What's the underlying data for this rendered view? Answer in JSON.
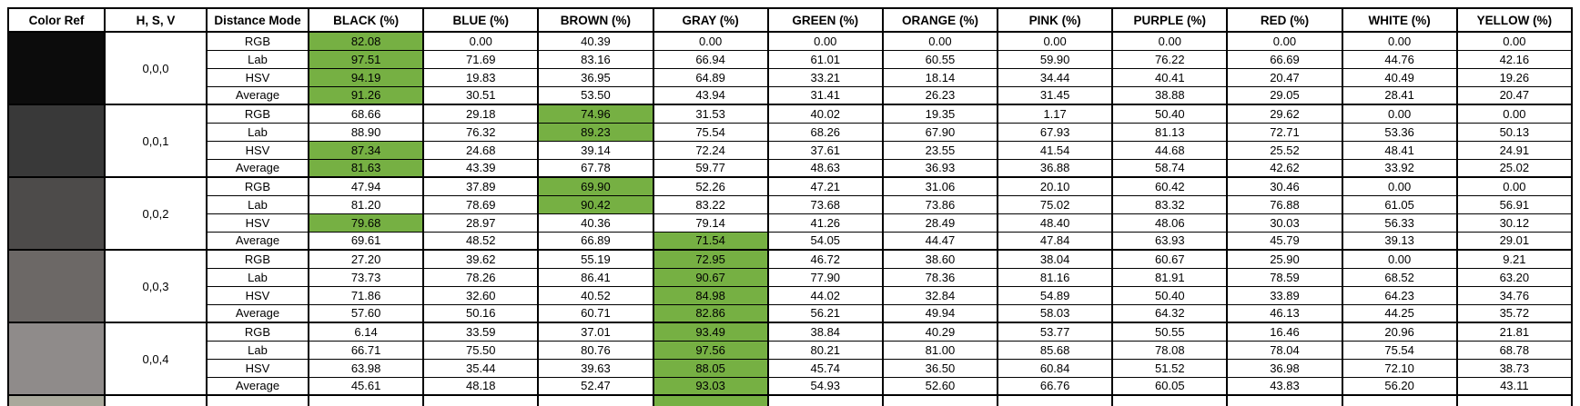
{
  "table": {
    "highlight_color": "#76b043",
    "headers": [
      "Color Ref",
      "H, S, V",
      "Distance Mode",
      "BLACK (%)",
      "BLUE  (%)",
      "BROWN (%)",
      "GRAY (%)",
      "GREEN (%)",
      "ORANGE (%)",
      "PINK (%)",
      "PURPLE (%)",
      "RED (%)",
      "WHITE (%)",
      "YELLOW (%)"
    ],
    "groups": [
      {
        "hsv": "0,0,0",
        "swatch": "#0c0c0c",
        "rows": [
          {
            "mode": "RGB",
            "highlight": 0,
            "values": [
              "82.08",
              "0.00",
              "40.39",
              "0.00",
              "0.00",
              "0.00",
              "0.00",
              "0.00",
              "0.00",
              "0.00",
              "0.00"
            ]
          },
          {
            "mode": "Lab",
            "highlight": 0,
            "values": [
              "97.51",
              "71.69",
              "83.16",
              "66.94",
              "61.01",
              "60.55",
              "59.90",
              "76.22",
              "66.69",
              "44.76",
              "42.16"
            ]
          },
          {
            "mode": "HSV",
            "highlight": 0,
            "values": [
              "94.19",
              "19.83",
              "36.95",
              "64.89",
              "33.21",
              "18.14",
              "34.44",
              "40.41",
              "20.47",
              "40.49",
              "19.26"
            ]
          },
          {
            "mode": "Average",
            "highlight": 0,
            "values": [
              "91.26",
              "30.51",
              "53.50",
              "43.94",
              "31.41",
              "26.23",
              "31.45",
              "38.88",
              "29.05",
              "28.41",
              "20.47"
            ]
          }
        ]
      },
      {
        "hsv": "0,0,1",
        "swatch": "#393939",
        "rows": [
          {
            "mode": "RGB",
            "highlight": 2,
            "values": [
              "68.66",
              "29.18",
              "74.96",
              "31.53",
              "40.02",
              "19.35",
              "1.17",
              "50.40",
              "29.62",
              "0.00",
              "0.00"
            ]
          },
          {
            "mode": "Lab",
            "highlight": 2,
            "values": [
              "88.90",
              "76.32",
              "89.23",
              "75.54",
              "68.26",
              "67.90",
              "67.93",
              "81.13",
              "72.71",
              "53.36",
              "50.13"
            ]
          },
          {
            "mode": "HSV",
            "highlight": 0,
            "values": [
              "87.34",
              "24.68",
              "39.14",
              "72.24",
              "37.61",
              "23.55",
              "41.54",
              "44.68",
              "25.52",
              "48.41",
              "24.91"
            ]
          },
          {
            "mode": "Average",
            "highlight": 0,
            "values": [
              "81.63",
              "43.39",
              "67.78",
              "59.77",
              "48.63",
              "36.93",
              "36.88",
              "58.74",
              "42.62",
              "33.92",
              "25.02"
            ]
          }
        ]
      },
      {
        "hsv": "0,0,2",
        "swatch": "#4d4b4a",
        "rows": [
          {
            "mode": "RGB",
            "highlight": 2,
            "values": [
              "47.94",
              "37.89",
              "69.90",
              "52.26",
              "47.21",
              "31.06",
              "20.10",
              "60.42",
              "30.46",
              "0.00",
              "0.00"
            ]
          },
          {
            "mode": "Lab",
            "highlight": 2,
            "values": [
              "81.20",
              "78.69",
              "90.42",
              "83.22",
              "73.68",
              "73.86",
              "75.02",
              "83.32",
              "76.88",
              "61.05",
              "56.91"
            ]
          },
          {
            "mode": "HSV",
            "highlight": 0,
            "values": [
              "79.68",
              "28.97",
              "40.36",
              "79.14",
              "41.26",
              "28.49",
              "48.40",
              "48.06",
              "30.03",
              "56.33",
              "30.12"
            ]
          },
          {
            "mode": "Average",
            "highlight": 3,
            "values": [
              "69.61",
              "48.52",
              "66.89",
              "71.54",
              "54.05",
              "44.47",
              "47.84",
              "63.93",
              "45.79",
              "39.13",
              "29.01"
            ]
          }
        ]
      },
      {
        "hsv": "0,0,3",
        "swatch": "#6c6866",
        "rows": [
          {
            "mode": "RGB",
            "highlight": 3,
            "values": [
              "27.20",
              "39.62",
              "55.19",
              "72.95",
              "46.72",
              "38.60",
              "38.04",
              "60.67",
              "25.90",
              "0.00",
              "9.21"
            ]
          },
          {
            "mode": "Lab",
            "highlight": 3,
            "values": [
              "73.73",
              "78.26",
              "86.41",
              "90.67",
              "77.90",
              "78.36",
              "81.16",
              "81.91",
              "78.59",
              "68.52",
              "63.20"
            ]
          },
          {
            "mode": "HSV",
            "highlight": 3,
            "values": [
              "71.86",
              "32.60",
              "40.52",
              "84.98",
              "44.02",
              "32.84",
              "54.89",
              "50.40",
              "33.89",
              "64.23",
              "34.76"
            ]
          },
          {
            "mode": "Average",
            "highlight": 3,
            "values": [
              "57.60",
              "50.16",
              "60.71",
              "82.86",
              "56.21",
              "49.94",
              "58.03",
              "64.32",
              "46.13",
              "44.25",
              "35.72"
            ]
          }
        ]
      },
      {
        "hsv": "0,0,4",
        "swatch": "#8f8b8a",
        "rows": [
          {
            "mode": "RGB",
            "highlight": 3,
            "values": [
              "6.14",
              "33.59",
              "37.01",
              "93.49",
              "38.84",
              "40.29",
              "53.77",
              "50.55",
              "16.46",
              "20.96",
              "21.81"
            ]
          },
          {
            "mode": "Lab",
            "highlight": 3,
            "values": [
              "66.71",
              "75.50",
              "80.76",
              "97.56",
              "80.21",
              "81.00",
              "85.68",
              "78.08",
              "78.04",
              "75.54",
              "68.78"
            ]
          },
          {
            "mode": "HSV",
            "highlight": 3,
            "values": [
              "63.98",
              "35.44",
              "39.63",
              "88.05",
              "45.74",
              "36.50",
              "60.84",
              "51.52",
              "36.98",
              "72.10",
              "38.73"
            ]
          },
          {
            "mode": "Average",
            "highlight": 3,
            "values": [
              "45.61",
              "48.18",
              "52.47",
              "93.03",
              "54.93",
              "52.60",
              "66.76",
              "60.05",
              "43.83",
              "56.20",
              "43.11"
            ]
          }
        ]
      }
    ],
    "partial_row": {
      "swatch": "#a9a99c",
      "highlight": 3,
      "value_count": 11
    }
  }
}
